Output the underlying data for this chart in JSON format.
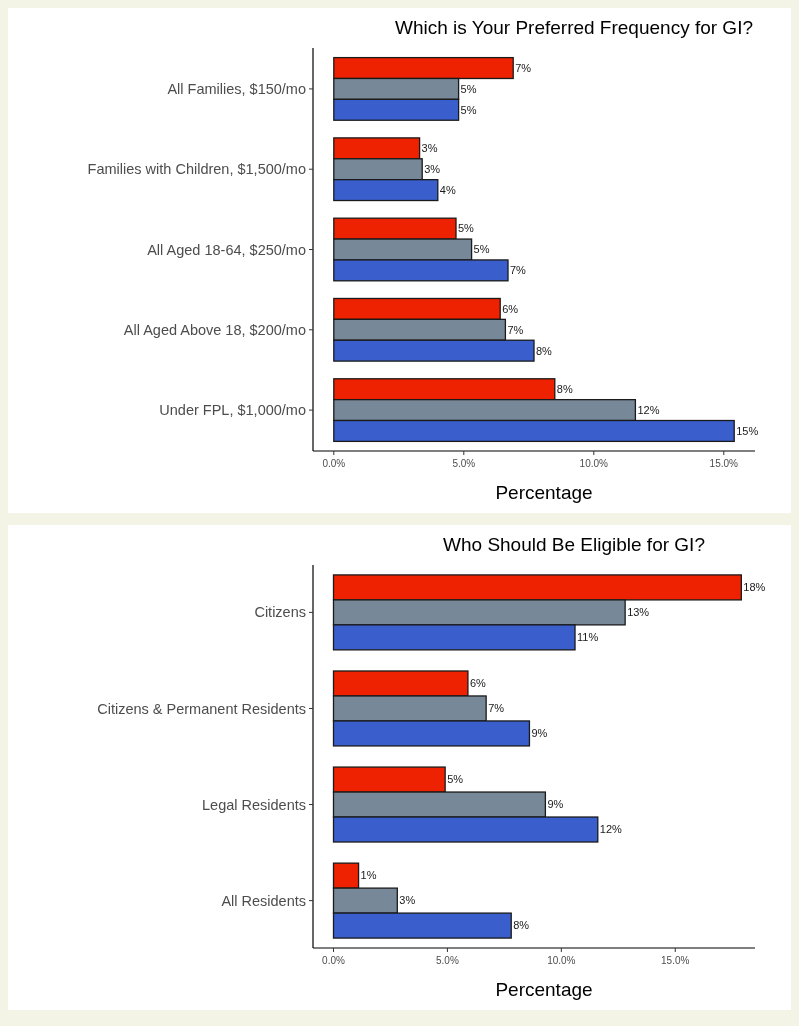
{
  "chart_data": [
    {
      "type": "bar",
      "orientation": "horizontal",
      "title": "Which is Your Preferred Frequency for GI?",
      "xlabel": "Percentage",
      "categories": [
        "All Families, $150/mo",
        "Families with Children, $1,500/mo",
        "All Aged 18-64, $250/mo",
        "All Aged Above 18, $200/mo",
        "Under FPL, $1,000/mo"
      ],
      "series": [
        {
          "color": "#ee2200",
          "values": [
            6.9,
            3.3,
            4.7,
            6.4,
            8.5
          ],
          "value_labels": [
            "7%",
            "3%",
            "5%",
            "6%",
            "8%"
          ]
        },
        {
          "color": "#778899",
          "values": [
            4.8,
            3.4,
            5.3,
            6.6,
            11.6
          ],
          "value_labels": [
            "5%",
            "3%",
            "5%",
            "7%",
            "12%"
          ]
        },
        {
          "color": "#3a5fcd",
          "values": [
            4.8,
            4.0,
            6.7,
            7.7,
            15.4
          ],
          "value_labels": [
            "5%",
            "4%",
            "7%",
            "8%",
            "15%"
          ]
        }
      ],
      "xlim": [
        -0.8,
        16.2
      ],
      "xticks": [
        {
          "value": 0,
          "label": "0.0%"
        },
        {
          "value": 5,
          "label": "5.0%"
        },
        {
          "value": 10,
          "label": "10.0%"
        },
        {
          "value": 15,
          "label": "15.0%"
        }
      ],
      "grid": false
    },
    {
      "type": "bar",
      "orientation": "horizontal",
      "title": "Who Should Be Eligible for GI?",
      "xlabel": "Percentage",
      "categories": [
        "Citizens",
        "Citizens & Permanent Residents",
        "Legal Residents",
        "All Residents"
      ],
      "series": [
        {
          "color": "#ee2200",
          "values": [
            17.9,
            5.9,
            4.9,
            1.1
          ],
          "value_labels": [
            "18%",
            "6%",
            "5%",
            "1%"
          ]
        },
        {
          "color": "#778899",
          "values": [
            12.8,
            6.7,
            9.3,
            2.8
          ],
          "value_labels": [
            "13%",
            "7%",
            "9%",
            "3%"
          ]
        },
        {
          "color": "#3a5fcd",
          "values": [
            10.6,
            8.6,
            11.6,
            7.8
          ],
          "value_labels": [
            "11%",
            "9%",
            "12%",
            "8%"
          ]
        }
      ],
      "xlim": [
        -0.9,
        18.5
      ],
      "xticks": [
        {
          "value": 0,
          "label": "0.0%"
        },
        {
          "value": 5,
          "label": "5.0%"
        },
        {
          "value": 10,
          "label": "10.0%"
        },
        {
          "value": 15,
          "label": "15.0%"
        }
      ],
      "grid": false
    }
  ]
}
